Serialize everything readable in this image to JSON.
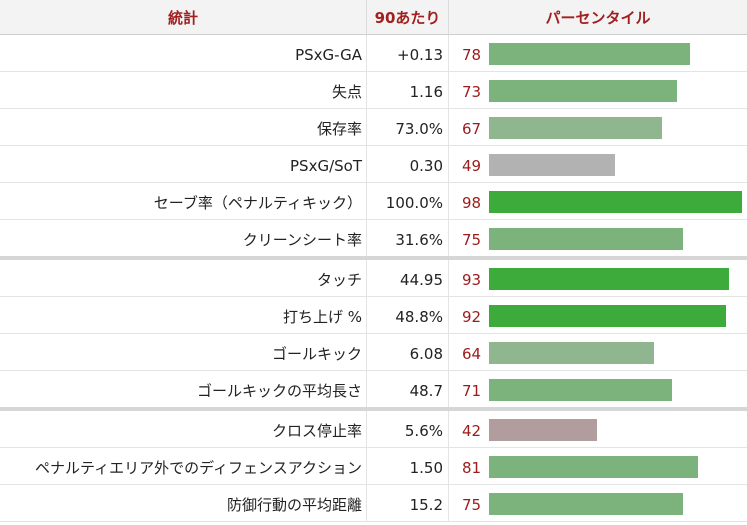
{
  "header": {
    "stat_label": "統計",
    "per90_label": "90あたり",
    "percentile_label": "パーセンタイル"
  },
  "colors": {
    "header_text": "#a11f1f",
    "percentile_text": "#9b1b1b",
    "bar_high": "#3cab3c",
    "bar_above_avg": "#7cb27c",
    "bar_mid": "#8fb68f",
    "bar_below_avg_gray": "#b2b2b2",
    "bar_low_mauve": "#b19d9d"
  },
  "groups": [
    {
      "rows": [
        {
          "stat": "PSxG-GA",
          "per90": "+0.13",
          "percentile": "78",
          "percentile_value": 78,
          "bar_color": "#7cb27c"
        },
        {
          "stat": "失点",
          "per90": "1.16",
          "percentile": "73",
          "percentile_value": 73,
          "bar_color": "#7cb27c"
        },
        {
          "stat": "保存率",
          "per90": "73.0%",
          "percentile": "67",
          "percentile_value": 67,
          "bar_color": "#8fb68f"
        },
        {
          "stat": "PSxG/SoT",
          "per90": "0.30",
          "percentile": "49",
          "percentile_value": 49,
          "bar_color": "#b2b2b2"
        },
        {
          "stat": "セーブ率（ペナルティキック）",
          "per90": "100.0%",
          "percentile": "98",
          "percentile_value": 98,
          "bar_color": "#3cab3c"
        },
        {
          "stat": "クリーンシート率",
          "per90": "31.6%",
          "percentile": "75",
          "percentile_value": 75,
          "bar_color": "#7cb27c"
        }
      ]
    },
    {
      "rows": [
        {
          "stat": "タッチ",
          "per90": "44.95",
          "percentile": "93",
          "percentile_value": 93,
          "bar_color": "#3cab3c"
        },
        {
          "stat": "打ち上げ %",
          "per90": "48.8%",
          "percentile": "92",
          "percentile_value": 92,
          "bar_color": "#3cab3c"
        },
        {
          "stat": "ゴールキック",
          "per90": "6.08",
          "percentile": "64",
          "percentile_value": 64,
          "bar_color": "#8fb68f"
        },
        {
          "stat": "ゴールキックの平均長さ",
          "per90": "48.7",
          "percentile": "71",
          "percentile_value": 71,
          "bar_color": "#7cb27c"
        }
      ]
    },
    {
      "rows": [
        {
          "stat": "クロス停止率",
          "per90": "5.6%",
          "percentile": "42",
          "percentile_value": 42,
          "bar_color": "#b19d9d"
        },
        {
          "stat": "ペナルティエリア外でのディフェンスアクション",
          "per90": "1.50",
          "percentile": "81",
          "percentile_value": 81,
          "bar_color": "#7cb27c"
        },
        {
          "stat": "防御行動の平均距離",
          "per90": "15.2",
          "percentile": "75",
          "percentile_value": 75,
          "bar_color": "#7cb27c"
        }
      ]
    }
  ]
}
